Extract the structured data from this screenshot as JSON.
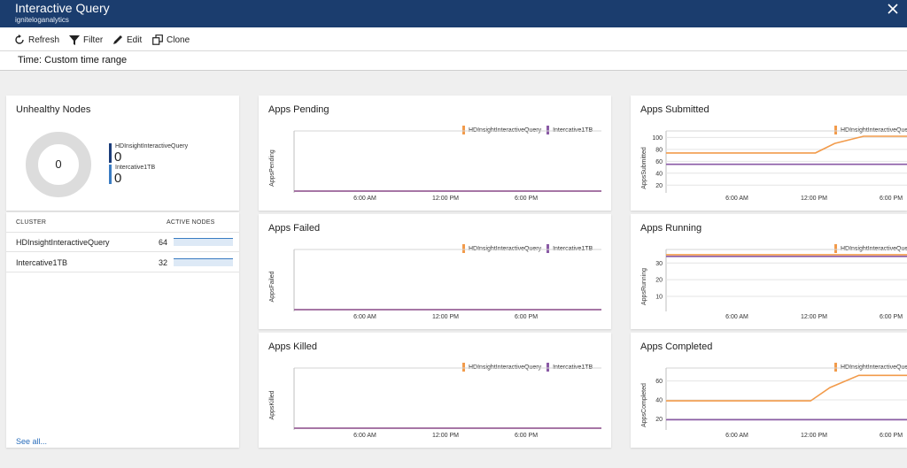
{
  "header": {
    "title": "Interactive Query",
    "subtitle": "igniteloganalytics",
    "close_icon": "close-icon"
  },
  "toolbar": {
    "refresh": "Refresh",
    "filter": "Filter",
    "edit": "Edit",
    "clone": "Clone"
  },
  "time_range": "Time: Custom time range",
  "colors": {
    "header_bg": "#1b3d6e",
    "series_a": "#f29b4b",
    "series_b": "#8a5aa5",
    "dark_blue": "#1b3d7a",
    "mid_blue": "#3a7cc2"
  },
  "unhealthy_nodes": {
    "title": "Unhealthy Nodes",
    "total": "0",
    "legend": [
      {
        "label": "HDInsightInteractiveQuery",
        "value": "0"
      },
      {
        "label": "Intercative1TB",
        "value": "0"
      }
    ]
  },
  "cluster_table": {
    "col_cluster": "CLUSTER",
    "col_active_nodes": "ACTIVE NODES",
    "rows": [
      {
        "cluster": "HDInsightInteractiveQuery",
        "active_nodes": "64"
      },
      {
        "cluster": "Intercative1TB",
        "active_nodes": "32"
      }
    ],
    "see_all": "See all..."
  },
  "legend_series": [
    "HDInsightInteractiveQuery",
    "Intercative1TB"
  ],
  "chart_data": [
    {
      "title": "Apps Pending",
      "type": "line",
      "ylabel": "AppsPending",
      "x_ticks": [
        "6:00 AM",
        "12:00 PM",
        "6:00 PM"
      ],
      "y_ticks": [],
      "ylim": [
        0,
        1
      ],
      "series": [
        {
          "name": "HDInsightInteractiveQuery",
          "points": [
            [
              0,
              0
            ],
            [
              1,
              0
            ]
          ]
        },
        {
          "name": "Intercative1TB",
          "points": [
            [
              0,
              0
            ],
            [
              1,
              0
            ]
          ]
        }
      ]
    },
    {
      "title": "Apps Failed",
      "type": "line",
      "ylabel": "AppsFailed",
      "x_ticks": [
        "6:00 AM",
        "12:00 PM",
        "6:00 PM"
      ],
      "y_ticks": [],
      "ylim": [
        0,
        1
      ],
      "series": [
        {
          "name": "HDInsightInteractiveQuery",
          "points": [
            [
              0,
              0
            ],
            [
              1,
              0
            ]
          ]
        },
        {
          "name": "Intercative1TB",
          "points": [
            [
              0,
              0
            ],
            [
              1,
              0
            ]
          ]
        }
      ]
    },
    {
      "title": "Apps Killed",
      "type": "line",
      "ylabel": "AppsKilled",
      "x_ticks": [
        "6:00 AM",
        "12:00 PM",
        "6:00 PM"
      ],
      "y_ticks": [],
      "ylim": [
        0,
        1
      ],
      "series": [
        {
          "name": "HDInsightInteractiveQuery",
          "points": [
            [
              0,
              0
            ],
            [
              1,
              0
            ]
          ]
        },
        {
          "name": "Intercative1TB",
          "points": [
            [
              0,
              0
            ],
            [
              1,
              0
            ]
          ]
        }
      ]
    },
    {
      "title": "Apps Submitted",
      "type": "line",
      "ylabel": "AppsSubmitted",
      "x_ticks": [
        "6:00 AM",
        "12:00 PM",
        "6:00 PM"
      ],
      "y_ticks": [
        "100",
        "80",
        "60",
        "40",
        "20"
      ],
      "ylim": [
        10,
        105
      ],
      "series": [
        {
          "name": "HDInsightInteractiveQuery",
          "points": [
            [
              0,
              74
            ],
            [
              0.62,
              74
            ],
            [
              0.7,
              90
            ],
            [
              0.82,
              102
            ],
            [
              1,
              102
            ]
          ]
        },
        {
          "name": "Intercative1TB",
          "points": [
            [
              0,
              55
            ],
            [
              1,
              55
            ]
          ]
        }
      ]
    },
    {
      "title": "Apps Running",
      "type": "line",
      "ylabel": "AppsRunning",
      "x_ticks": [
        "6:00 AM",
        "12:00 PM",
        "6:00 PM"
      ],
      "y_ticks": [
        "30",
        "20",
        "10"
      ],
      "ylim": [
        2,
        36
      ],
      "series": [
        {
          "name": "HDInsightInteractiveQuery",
          "points": [
            [
              0,
              35
            ],
            [
              1,
              35
            ]
          ]
        },
        {
          "name": "Intercative1TB",
          "points": [
            [
              0,
              34
            ],
            [
              1,
              34
            ]
          ]
        }
      ]
    },
    {
      "title": "Apps Completed",
      "type": "line",
      "ylabel": "AppsCompleted",
      "x_ticks": [
        "6:00 AM",
        "12:00 PM",
        "6:00 PM"
      ],
      "y_ticks": [
        "60",
        "40",
        "20"
      ],
      "ylim": [
        10,
        70
      ],
      "series": [
        {
          "name": "HDInsightInteractiveQuery",
          "points": [
            [
              0,
              39
            ],
            [
              0.6,
              39
            ],
            [
              0.68,
              53
            ],
            [
              0.8,
              66
            ],
            [
              1,
              66
            ]
          ]
        },
        {
          "name": "Intercative1TB",
          "points": [
            [
              0,
              19
            ],
            [
              1,
              19
            ]
          ]
        }
      ]
    }
  ]
}
